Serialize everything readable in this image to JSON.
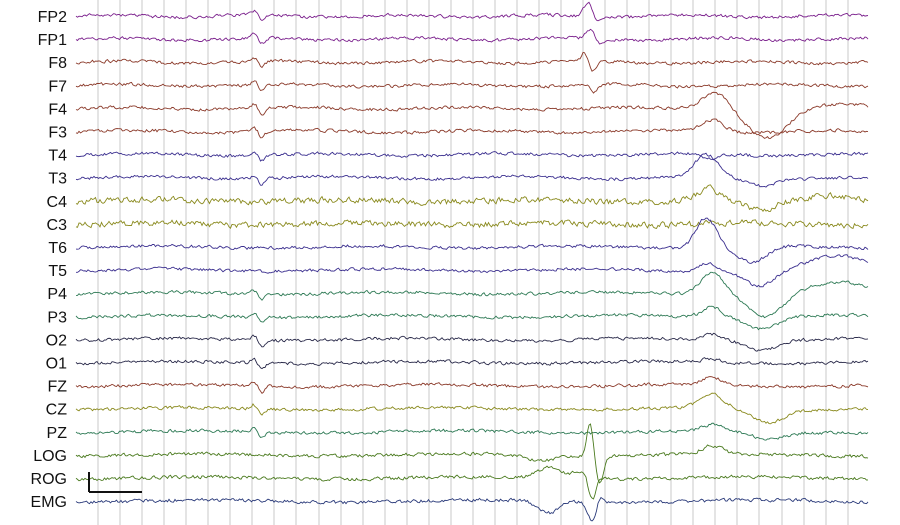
{
  "chart_data": {
    "type": "line",
    "title": "",
    "xlabel": "",
    "ylabel": "",
    "grid": "vertical",
    "channels": [
      {
        "name": "FP2",
        "color": "#7a1f8c"
      },
      {
        "name": "FP1",
        "color": "#7a1f8c"
      },
      {
        "name": "F8",
        "color": "#8b3a2a"
      },
      {
        "name": "F7",
        "color": "#8b3a2a"
      },
      {
        "name": "F4",
        "color": "#8b3a2a"
      },
      {
        "name": "F3",
        "color": "#8b3a2a"
      },
      {
        "name": "T4",
        "color": "#3b2f8f"
      },
      {
        "name": "T3",
        "color": "#3b2f8f"
      },
      {
        "name": "C4",
        "color": "#8a8a1e"
      },
      {
        "name": "C3",
        "color": "#8a8a1e"
      },
      {
        "name": "T6",
        "color": "#3b2f8f"
      },
      {
        "name": "T5",
        "color": "#3b2f8f"
      },
      {
        "name": "P4",
        "color": "#2e7a55"
      },
      {
        "name": "P3",
        "color": "#2e7a55"
      },
      {
        "name": "O2",
        "color": "#2a2a4a"
      },
      {
        "name": "O1",
        "color": "#2a2a4a"
      },
      {
        "name": "FZ",
        "color": "#8b3a2a"
      },
      {
        "name": "CZ",
        "color": "#8a8a1e"
      },
      {
        "name": "PZ",
        "color": "#2e7a55"
      },
      {
        "name": "LOG",
        "color": "#4a7a1e"
      },
      {
        "name": "ROG",
        "color": "#4a7a1e"
      },
      {
        "name": "EMG",
        "color": "#2a3a7a"
      }
    ]
  },
  "colors": {
    "grid": "#c8c8c8",
    "label": "#111111",
    "scale_bar": "#111111"
  }
}
